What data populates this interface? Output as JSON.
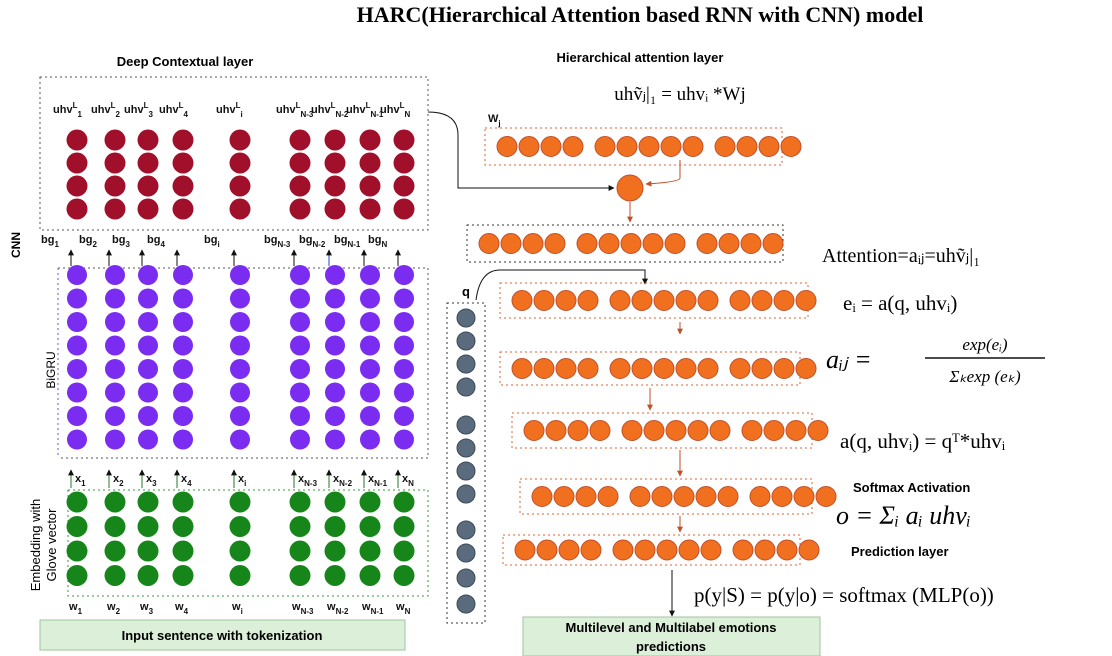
{
  "title": "HARC(Hierarchical Attention based RNN with CNN) model",
  "deep_contextual": {
    "title": "Deep Contextual layer",
    "labels": [
      {
        "base": "uhv",
        "sup": "L",
        "sub": "1"
      },
      {
        "base": "uhv",
        "sup": "L",
        "sub": "2"
      },
      {
        "base": "uhv",
        "sup": "L",
        "sub": "3"
      },
      {
        "base": "uhv",
        "sup": "L",
        "sub": "4"
      },
      {
        "base": "uhv",
        "sup": "L",
        "sub": "i"
      },
      {
        "base": "uhv",
        "sup": "L",
        "sub": "N-3"
      },
      {
        "base": "uhv",
        "sup": "L",
        "sub": "N-2"
      },
      {
        "base": "uhv",
        "sup": "L",
        "sub": "N-1"
      },
      {
        "base": "uhv",
        "sup": "L",
        "sub": "N"
      }
    ]
  },
  "side_labels": {
    "cnn": "CNN",
    "bigru": "BiGRU",
    "embedding": [
      "Embedding with",
      "Glove vector"
    ]
  },
  "bg_labels": [
    {
      "base": "bg",
      "sub": "1"
    },
    {
      "base": "bg",
      "sub": "2"
    },
    {
      "base": "bg",
      "sub": "3"
    },
    {
      "base": "bg",
      "sub": "4"
    },
    {
      "base": "bg",
      "sub": "i"
    },
    {
      "base": "bg",
      "sub": "N-3"
    },
    {
      "base": "bg",
      "sub": "N-2"
    },
    {
      "base": "bg",
      "sub": "N-1"
    },
    {
      "base": "bg",
      "sub": "N"
    }
  ],
  "x_labels": [
    {
      "base": "x",
      "sub": "1"
    },
    {
      "base": "x",
      "sub": "2"
    },
    {
      "base": "x",
      "sub": "3"
    },
    {
      "base": "x",
      "sub": "4"
    },
    {
      "base": "x",
      "sub": "i"
    },
    {
      "base": "x",
      "sub": "N-3"
    },
    {
      "base": "x",
      "sub": "N-2"
    },
    {
      "base": "x",
      "sub": "N-1"
    },
    {
      "base": "x",
      "sub": "N"
    }
  ],
  "w_labels": [
    {
      "base": "w",
      "sub": "1"
    },
    {
      "base": "w",
      "sub": "2"
    },
    {
      "base": "w",
      "sub": "3"
    },
    {
      "base": "w",
      "sub": "4"
    },
    {
      "base": "w",
      "sub": "i"
    },
    {
      "base": "w",
      "sub": "N-3"
    },
    {
      "base": "w",
      "sub": "N-2"
    },
    {
      "base": "w",
      "sub": "N-1"
    },
    {
      "base": "w",
      "sub": "N"
    }
  ],
  "attention": {
    "title": "Hierarchical attention layer",
    "formula": "uhṽⱼ|₁ = uhvᵢ *Wj",
    "weight_label": {
      "base": "W",
      "sub": "j"
    }
  },
  "q_label": "q",
  "equations": {
    "attention": "Attention=aᵢⱼ=uhṽⱼ|₁",
    "energy": "eᵢ = a(q, uhvᵢ)",
    "softmax": {
      "lhs": "aᵢⱼ =",
      "num": "exp(eᵢ)",
      "den": "Σₖexp (eₖ)"
    },
    "score": "a(q, uhvᵢ) = qᵀ*uhvᵢ",
    "output": "o = Σᵢ aᵢ uhvᵢ",
    "prediction": "p(y|S) = p(y|o) = softmax (MLP(o))"
  },
  "softmax_label": "Softmax Activation",
  "prediction_label": "Prediction layer",
  "footers": {
    "input": "Input sentence with tokenization",
    "output": [
      "Multilevel and Multilabel emotions",
      "predictions"
    ]
  }
}
